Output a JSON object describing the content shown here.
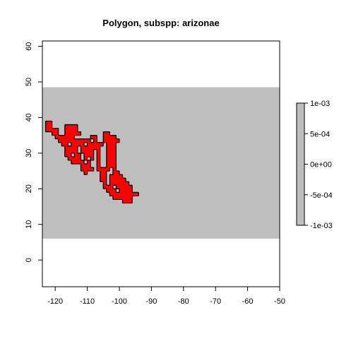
{
  "title": "Polygon, subspp: arizonae",
  "chart_data": {
    "type": "heatmap",
    "title": "Polygon, subspp: arizonae",
    "xlabel": "",
    "ylabel": "",
    "xlim": [
      -124,
      -50
    ],
    "ylim": [
      -7.5,
      61.5
    ],
    "x_ticks": [
      -120,
      -110,
      -100,
      -90,
      -80,
      -70,
      -60,
      -50
    ],
    "y_ticks": [
      0,
      10,
      20,
      30,
      40,
      50,
      60
    ],
    "raster_extent": {
      "ymin": 6,
      "ymax": 48.5
    },
    "raster_value": 0,
    "raster_color": "#bebebe",
    "polygon_fill": "#ff0000",
    "polygon_stroke": "#000000",
    "grid": false,
    "polygon_cells": [
      [
        38,
        -123,
        -121
      ],
      [
        37,
        -123,
        -121
      ],
      [
        37,
        -117,
        -113
      ],
      [
        36,
        -123,
        -119
      ],
      [
        36,
        -117,
        -113
      ],
      [
        35,
        -121,
        -119
      ],
      [
        35,
        -117,
        -112
      ],
      [
        35,
        -105,
        -103
      ],
      [
        34,
        -120,
        -114
      ],
      [
        34,
        -109,
        -107
      ],
      [
        34,
        -105,
        -101
      ],
      [
        33,
        -119,
        -109
      ],
      [
        33,
        -108,
        -107
      ],
      [
        33,
        -105,
        -100
      ],
      [
        32,
        -118,
        -116
      ],
      [
        32,
        -115,
        -111
      ],
      [
        32,
        -110,
        -105
      ],
      [
        32,
        -104,
        -101
      ],
      [
        31,
        -117,
        -113
      ],
      [
        31,
        -112,
        -106
      ],
      [
        31,
        -104,
        -101
      ],
      [
        30,
        -117,
        -113
      ],
      [
        30,
        -112,
        -108
      ],
      [
        30,
        -107,
        -106
      ],
      [
        30,
        -104,
        -101
      ],
      [
        29,
        -117,
        -115
      ],
      [
        29,
        -114,
        -112
      ],
      [
        29,
        -111,
        -108
      ],
      [
        29,
        -107,
        -106
      ],
      [
        29,
        -104,
        -101
      ],
      [
        28,
        -116,
        -112
      ],
      [
        28,
        -111,
        -110
      ],
      [
        28,
        -109,
        -108
      ],
      [
        28,
        -107,
        -106
      ],
      [
        28,
        -104,
        -101
      ],
      [
        27,
        -115,
        -111
      ],
      [
        27,
        -110,
        -109
      ],
      [
        27,
        -107,
        -106
      ],
      [
        27,
        -104,
        -101
      ],
      [
        26,
        -112,
        -109
      ],
      [
        26,
        -107,
        -106
      ],
      [
        26,
        -104,
        -101
      ],
      [
        25,
        -112,
        -108
      ],
      [
        25,
        -107,
        -103
      ],
      [
        25,
        -102,
        -101
      ],
      [
        24,
        -111,
        -110
      ],
      [
        24,
        -106,
        -104
      ],
      [
        24,
        -102,
        -100
      ],
      [
        23,
        -106,
        -104
      ],
      [
        23,
        -103,
        -99
      ],
      [
        22,
        -106,
        -104
      ],
      [
        22,
        -103,
        -98
      ],
      [
        21,
        -105,
        -104
      ],
      [
        21,
        -103,
        -97
      ],
      [
        20,
        -105,
        -102
      ],
      [
        20,
        -101,
        -96
      ],
      [
        19,
        -104,
        -101
      ],
      [
        19,
        -100,
        -96
      ],
      [
        18,
        -103,
        -94
      ],
      [
        17,
        -102,
        -96
      ],
      [
        16,
        -99,
        -96
      ]
    ],
    "legend": {
      "ticks": [
        {
          "value": 0.001,
          "label": "1e-03"
        },
        {
          "value": 0.0005,
          "label": "5e-04"
        },
        {
          "value": 0,
          "label": "0e+00"
        },
        {
          "value": -0.0005,
          "label": "-5e-04"
        },
        {
          "value": -0.001,
          "label": "-1e-03"
        }
      ],
      "range": [
        -0.001,
        0.001
      ],
      "color": "#bebebe",
      "placement": "right"
    }
  }
}
